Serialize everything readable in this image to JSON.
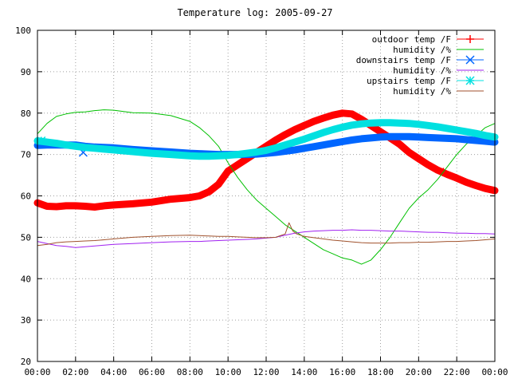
{
  "chart_data": {
    "type": "line",
    "title": "Temperature log: 2005-09-27",
    "xlabel": "",
    "ylabel": "",
    "xlim": [
      0,
      24
    ],
    "ylim": [
      20,
      100
    ],
    "grid": true,
    "legend_position": "top-right",
    "x_ticks": [
      "00:00",
      "02:00",
      "04:00",
      "06:00",
      "08:00",
      "10:00",
      "12:00",
      "14:00",
      "16:00",
      "18:00",
      "20:00",
      "22:00",
      "00:00"
    ],
    "y_ticks": [
      "20",
      "30",
      "40",
      "50",
      "60",
      "70",
      "80",
      "90",
      "100"
    ],
    "series": [
      {
        "name": "outdoor temp /F",
        "color": "#ff0000",
        "marker": "plus",
        "x": [
          0,
          0.5,
          1,
          1.5,
          2,
          2.5,
          3,
          3.5,
          4,
          5,
          6,
          7,
          8,
          8.5,
          9,
          9.5,
          10,
          10.5,
          11,
          11.5,
          12,
          12.5,
          13,
          13.5,
          14,
          14.5,
          15,
          15.5,
          16,
          16.5,
          17,
          17.5,
          18,
          18.5,
          19,
          19.5,
          20,
          20.5,
          21,
          21.5,
          22,
          22.5,
          23,
          23.5,
          24
        ],
        "y": [
          58.3,
          57.5,
          57.4,
          57.6,
          57.6,
          57.5,
          57.3,
          57.6,
          57.8,
          58.1,
          58.5,
          59.2,
          59.6,
          60.0,
          61.0,
          62.8,
          66.0,
          67.5,
          69.0,
          70.5,
          72.0,
          73.5,
          74.8,
          76.0,
          77.0,
          78.0,
          78.8,
          79.5,
          80.0,
          79.8,
          78.5,
          77.0,
          75.5,
          74.0,
          72.5,
          70.5,
          69.0,
          67.5,
          66.2,
          65.2,
          64.3,
          63.3,
          62.5,
          61.8,
          61.3
        ],
        "marker_x": [
          21.3
        ],
        "marker_y": [
          65.8
        ]
      },
      {
        "name": "humidity /%",
        "color": "#00c000",
        "marker": "none",
        "x": [
          0,
          0.5,
          1,
          1.5,
          2,
          2.5,
          3,
          3.5,
          4,
          5,
          6,
          7,
          8,
          8.5,
          9,
          9.5,
          10,
          10.5,
          11,
          11.5,
          12,
          12.5,
          13,
          13.5,
          14,
          14.5,
          15,
          15.5,
          16,
          16.5,
          17,
          17.5,
          18,
          18.5,
          19,
          19.5,
          20,
          20.5,
          21,
          21.5,
          22,
          22.5,
          23,
          23.5,
          24
        ],
        "y": [
          75,
          77.5,
          79.2,
          79.8,
          80.2,
          80.3,
          80.6,
          80.8,
          80.7,
          80.1,
          80.0,
          79.4,
          78.0,
          76.5,
          74.5,
          72.0,
          68.0,
          64.5,
          61.5,
          59.0,
          57.0,
          55.0,
          53.0,
          51.5,
          50.0,
          48.5,
          47.0,
          46.0,
          45.0,
          44.5,
          43.5,
          44.5,
          47.0,
          50.0,
          53.5,
          57.0,
          59.5,
          61.5,
          64.0,
          67.0,
          70.0,
          72.5,
          74.5,
          76.5,
          77.5
        ]
      },
      {
        "name": "downstairs temp /F",
        "color": "#0066ff",
        "marker": "cross",
        "x": [
          0,
          0.5,
          1,
          1.5,
          2,
          2.5,
          3,
          3.5,
          4,
          5,
          6,
          7,
          8,
          8.5,
          9,
          9.5,
          10,
          10.5,
          11,
          11.5,
          12,
          12.5,
          13,
          13.5,
          14,
          14.5,
          15,
          15.5,
          16,
          16.5,
          17,
          17.5,
          18,
          18.5,
          19,
          19.5,
          20,
          20.5,
          21,
          21.5,
          22,
          22.5,
          23,
          23.5,
          24
        ],
        "y": [
          72.2,
          72.3,
          72.3,
          72.3,
          72.3,
          72.0,
          71.8,
          71.7,
          71.6,
          71.2,
          70.9,
          70.6,
          70.3,
          70.2,
          70.1,
          70.0,
          70.0,
          70.0,
          70.0,
          70.1,
          70.3,
          70.5,
          70.8,
          71.1,
          71.5,
          71.9,
          72.3,
          72.7,
          73.1,
          73.5,
          73.8,
          74.0,
          74.2,
          74.3,
          74.3,
          74.3,
          74.2,
          74.1,
          74.0,
          73.9,
          73.8,
          73.6,
          73.4,
          73.2,
          73.0
        ],
        "marker_x": [
          2.4
        ],
        "marker_y": [
          70.5
        ]
      },
      {
        "name": "humidity /%",
        "color": "#a020f0",
        "marker": "none",
        "x": [
          0,
          0.5,
          1,
          1.5,
          2,
          2.5,
          3,
          3.5,
          4,
          5,
          6,
          7,
          8,
          8.5,
          9,
          9.5,
          10,
          10.5,
          11,
          11.5,
          12,
          12.5,
          13,
          13.5,
          14,
          14.5,
          15,
          15.5,
          16,
          16.5,
          17,
          17.5,
          18,
          18.5,
          19,
          19.5,
          20,
          20.5,
          21,
          21.5,
          22,
          22.5,
          23,
          23.5,
          24
        ],
        "y": [
          49.0,
          48.5,
          48.0,
          47.8,
          47.5,
          47.7,
          47.9,
          48.1,
          48.3,
          48.5,
          48.7,
          48.9,
          49.0,
          49.0,
          49.1,
          49.2,
          49.3,
          49.4,
          49.5,
          49.6,
          49.8,
          50.0,
          50.5,
          51.0,
          51.3,
          51.5,
          51.6,
          51.7,
          51.7,
          51.8,
          51.7,
          51.7,
          51.6,
          51.5,
          51.5,
          51.4,
          51.3,
          51.2,
          51.2,
          51.1,
          51.0,
          51.0,
          50.9,
          50.9,
          50.8
        ]
      },
      {
        "name": "upstairs temp /F",
        "color": "#00e0e0",
        "marker": "star",
        "x": [
          0,
          0.5,
          1,
          1.5,
          2,
          2.5,
          3,
          3.5,
          4,
          5,
          6,
          7,
          8,
          8.5,
          9,
          9.5,
          10,
          10.5,
          11,
          11.5,
          12,
          12.5,
          13,
          13.5,
          14,
          14.5,
          15,
          15.5,
          16,
          16.5,
          17,
          17.5,
          18,
          18.5,
          19,
          19.5,
          20,
          20.5,
          21,
          21.5,
          22,
          22.5,
          23,
          23.5,
          24
        ],
        "y": [
          73.3,
          73.0,
          72.7,
          72.3,
          72.0,
          71.7,
          71.5,
          71.3,
          71.1,
          70.7,
          70.3,
          70.0,
          69.7,
          69.6,
          69.6,
          69.7,
          69.8,
          70.0,
          70.3,
          70.6,
          71.0,
          71.6,
          72.3,
          73.0,
          73.7,
          74.5,
          75.3,
          76.0,
          76.6,
          77.1,
          77.4,
          77.6,
          77.7,
          77.7,
          77.6,
          77.5,
          77.3,
          77.0,
          76.7,
          76.3,
          75.9,
          75.5,
          75.1,
          74.6,
          74.2
        ],
        "marker_x": [
          0.2
        ],
        "marker_y": [
          73.3
        ]
      },
      {
        "name": "humidity /%",
        "color": "#a0522d",
        "marker": "none",
        "x": [
          0,
          0.5,
          1,
          1.5,
          2,
          2.5,
          3,
          3.5,
          4,
          5,
          6,
          7,
          8,
          8.5,
          9,
          9.5,
          10,
          10.5,
          11,
          11.5,
          12,
          12.5,
          13,
          13.2,
          13.4,
          13.6,
          14,
          14.5,
          15,
          15.5,
          16,
          16.5,
          17,
          17.5,
          18,
          18.5,
          19,
          19.5,
          20,
          20.5,
          21,
          21.5,
          22,
          22.5,
          23,
          23.5,
          24
        ],
        "y": [
          48.0,
          48.3,
          48.7,
          48.9,
          49.0,
          49.1,
          49.2,
          49.4,
          49.6,
          50.0,
          50.2,
          50.4,
          50.5,
          50.4,
          50.3,
          50.2,
          50.2,
          50.1,
          50.0,
          49.9,
          49.9,
          50.0,
          50.8,
          53.5,
          51.5,
          50.8,
          50.2,
          49.9,
          49.6,
          49.3,
          49.1,
          48.9,
          48.7,
          48.6,
          48.6,
          48.6,
          48.7,
          48.7,
          48.8,
          48.8,
          48.9,
          49.0,
          49.0,
          49.1,
          49.2,
          49.4,
          49.6
        ]
      }
    ]
  }
}
